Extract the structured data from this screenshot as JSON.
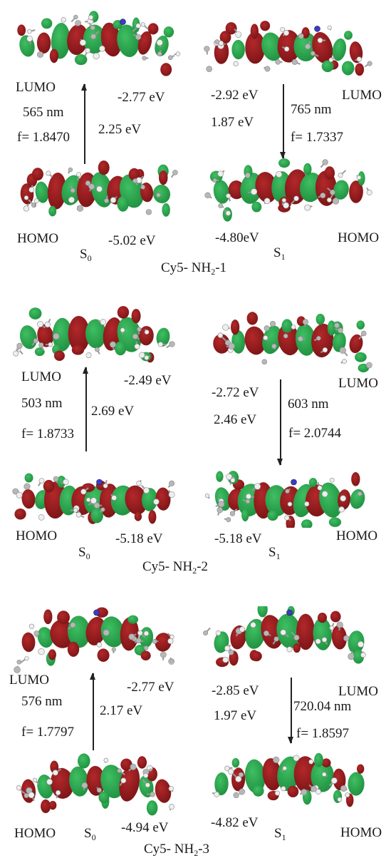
{
  "colors": {
    "lobe_red": "#7a1416",
    "lobe_green": "#1f8f3f",
    "atom_gray": "#b7b7b7",
    "atom_white": "#eeeeee",
    "nitrogen": "#3a3ad0"
  },
  "panels": [
    {
      "id": "nh2-1",
      "caption_prefix": "Cy5- NH",
      "caption_sub": "2",
      "caption_suffix": "-1",
      "s0": {
        "lumo_label": "LUMO",
        "lumo_energy": "-2.77 eV",
        "homo_label": "HOMO",
        "homo_energy": "-5.02 eV",
        "wavelength": "565 nm",
        "osc": "f= 1.8470",
        "gap": "2.25 eV",
        "state_main": "S",
        "state_sub": "0"
      },
      "s1": {
        "lumo_label": "LUMO",
        "lumo_energy": "-2.92 eV",
        "homo_label": "HOMO",
        "homo_energy": "-4.80eV",
        "wavelength": "765 nm",
        "osc": "f= 1.7337",
        "gap": "1.87 eV",
        "state_main": "S",
        "state_sub": "1"
      }
    },
    {
      "id": "nh2-2",
      "caption_prefix": "Cy5- NH",
      "caption_sub": "2",
      "caption_suffix": "-2",
      "s0": {
        "lumo_label": "LUMO",
        "lumo_energy": "-2.49 eV",
        "homo_label": "HOMO",
        "homo_energy": "-5.18 eV",
        "wavelength": "503 nm",
        "osc": "f= 1.8733",
        "gap": "2.69 eV",
        "state_main": "S",
        "state_sub": "0"
      },
      "s1": {
        "lumo_label": "LUMO",
        "lumo_energy": "-2.72 eV",
        "homo_label": "HOMO",
        "homo_energy": "-5.18 eV",
        "wavelength": "603 nm",
        "osc": "f= 2.0744",
        "gap": "2.46 eV",
        "state_main": "S",
        "state_sub": "1"
      }
    },
    {
      "id": "nh2-3",
      "caption_prefix": "Cy5- NH",
      "caption_sub": "2",
      "caption_suffix": "-3",
      "s0": {
        "lumo_label": "LUMO",
        "lumo_energy": "-2.77 eV",
        "homo_label": "HOMO",
        "homo_energy": "-4.94 eV",
        "wavelength": "576 nm",
        "osc": "f= 1.7797",
        "gap": "2.17 eV",
        "state_main": "S",
        "state_sub": "0"
      },
      "s1": {
        "lumo_label": "LUMO",
        "lumo_energy": "-2.85 eV",
        "homo_label": "HOMO",
        "homo_energy": "-4.82 eV",
        "wavelength": "720.04 nm",
        "osc": "f= 1.8597",
        "gap": "1.97 eV",
        "state_main": "S",
        "state_sub": "1"
      }
    }
  ]
}
